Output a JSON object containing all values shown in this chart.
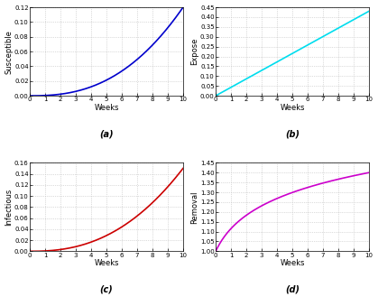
{
  "xlim": [
    0,
    10
  ],
  "xticks": [
    0,
    1,
    2,
    3,
    4,
    5,
    6,
    7,
    8,
    9,
    10
  ],
  "subplot_a": {
    "ylabel": "Susceptible",
    "xlabel": "Weeks",
    "label": "(a)",
    "ylim": [
      0,
      0.12
    ],
    "yticks": [
      0,
      0.02,
      0.04,
      0.06,
      0.08,
      0.1,
      0.12
    ],
    "color": "#0000cc",
    "exponent": 2.5
  },
  "subplot_b": {
    "ylabel": "Expose",
    "xlabel": "Weeks",
    "label": "(b)",
    "ylim": [
      0,
      0.45
    ],
    "yticks": [
      0,
      0.05,
      0.1,
      0.15,
      0.2,
      0.25,
      0.3,
      0.35,
      0.4,
      0.45
    ],
    "color": "#00ddee",
    "slope": 0.043
  },
  "subplot_c": {
    "ylabel": "Infectious",
    "xlabel": "Weeks",
    "label": "(c)",
    "ylim": [
      0,
      0.16
    ],
    "yticks": [
      0,
      0.02,
      0.04,
      0.06,
      0.08,
      0.1,
      0.12,
      0.14,
      0.16
    ],
    "color": "#cc0000",
    "exponent": 2.4
  },
  "subplot_d": {
    "ylabel": "Removal",
    "xlabel": "Weeks",
    "label": "(d)",
    "ylim": [
      1.0,
      1.45
    ],
    "yticks": [
      1.0,
      1.05,
      1.1,
      1.15,
      1.2,
      1.25,
      1.3,
      1.35,
      1.4,
      1.45
    ],
    "color": "#cc00cc",
    "scale": 0.4
  },
  "grid_color": "#bbbbbb",
  "grid_style": "dotted",
  "bg_color": "#ffffff",
  "tick_fontsize": 5,
  "label_fontsize": 6,
  "sublabel_fontsize": 7,
  "linewidth": 1.2
}
